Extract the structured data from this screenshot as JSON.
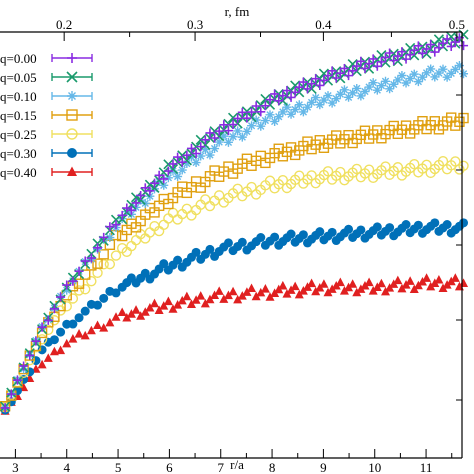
{
  "chart_data": {
    "type": "scatter",
    "title": "",
    "xlabel": "r/a",
    "x2label": "r, fm",
    "ylabel": "",
    "xlim": [
      2.7,
      11.7
    ],
    "ylim": [
      0,
      1
    ],
    "x_ticks": [
      "3",
      "4",
      "5",
      "6",
      "7",
      "8",
      "9",
      "10",
      "11"
    ],
    "x2_ticks": [
      "0.2",
      "0.3",
      "0.4",
      "0.5"
    ],
    "x2_tick_positions_r_over_a": [
      3.95,
      6.5,
      9.0,
      11.6
    ],
    "legend_position": "top-left",
    "grid": false,
    "series": [
      {
        "name": "q=0.00",
        "color": "#8a2be2",
        "marker": "plus",
        "x": [
          2.8,
          3.5,
          4.0,
          5.0,
          6.0,
          7.0,
          8.0,
          9.0,
          10.0,
          11.0,
          11.7
        ],
        "y": [
          0.12,
          0.3,
          0.4,
          0.56,
          0.68,
          0.77,
          0.84,
          0.89,
          0.93,
          0.96,
          0.98
        ]
      },
      {
        "name": "q=0.05",
        "color": "#1a9a6c",
        "marker": "cross",
        "x": [
          2.8,
          3.5,
          4.0,
          5.0,
          6.0,
          7.0,
          8.0,
          9.0,
          10.0,
          11.0,
          11.7
        ],
        "y": [
          0.12,
          0.3,
          0.4,
          0.56,
          0.68,
          0.77,
          0.84,
          0.89,
          0.93,
          0.96,
          0.99
        ]
      },
      {
        "name": "q=0.10",
        "color": "#66b8e8",
        "marker": "star",
        "x": [
          2.8,
          3.5,
          4.0,
          5.0,
          6.0,
          7.0,
          8.0,
          9.0,
          10.0,
          11.0,
          11.7
        ],
        "y": [
          0.12,
          0.3,
          0.4,
          0.55,
          0.66,
          0.74,
          0.8,
          0.84,
          0.87,
          0.9,
          0.91
        ]
      },
      {
        "name": "q=0.15",
        "color": "#e0a010",
        "marker": "square-open",
        "x": [
          2.8,
          3.5,
          4.0,
          5.0,
          6.0,
          7.0,
          8.0,
          9.0,
          10.0,
          11.0,
          11.7
        ],
        "y": [
          0.12,
          0.29,
          0.38,
          0.52,
          0.61,
          0.67,
          0.71,
          0.74,
          0.76,
          0.78,
          0.79
        ]
      },
      {
        "name": "q=0.25",
        "color": "#f0e060",
        "marker": "circle-open",
        "x": [
          2.8,
          3.5,
          4.0,
          5.0,
          6.0,
          7.0,
          8.0,
          9.0,
          10.0,
          11.0,
          11.7
        ],
        "y": [
          0.12,
          0.28,
          0.36,
          0.48,
          0.56,
          0.61,
          0.64,
          0.66,
          0.67,
          0.68,
          0.69
        ]
      },
      {
        "name": "q=0.30",
        "color": "#0070b8",
        "marker": "circle",
        "x": [
          2.8,
          3.5,
          4.0,
          5.0,
          6.0,
          7.0,
          8.0,
          9.0,
          10.0,
          11.0,
          11.7
        ],
        "y": [
          0.11,
          0.25,
          0.31,
          0.4,
          0.45,
          0.49,
          0.51,
          0.52,
          0.53,
          0.54,
          0.54
        ]
      },
      {
        "name": "q=0.40",
        "color": "#e02020",
        "marker": "triangle",
        "x": [
          2.8,
          3.5,
          4.0,
          5.0,
          6.0,
          7.0,
          8.0,
          9.0,
          10.0,
          11.0,
          11.7
        ],
        "y": [
          0.11,
          0.22,
          0.27,
          0.33,
          0.36,
          0.38,
          0.39,
          0.4,
          0.4,
          0.41,
          0.41
        ]
      }
    ]
  }
}
